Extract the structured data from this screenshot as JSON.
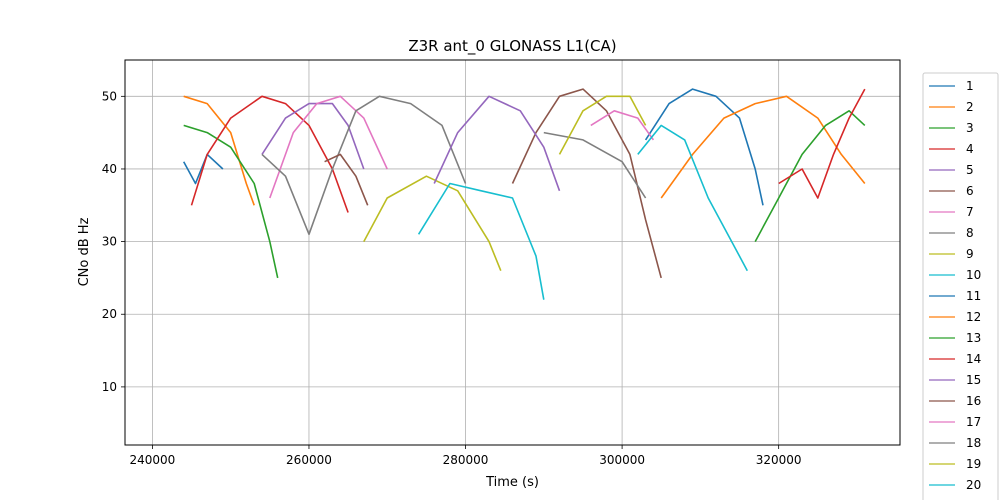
{
  "chart_data": {
    "type": "line",
    "title": "Z3R ant_0 GLONASS L1(CA)",
    "xlabel": "Time (s)",
    "ylabel": "CNo dB Hz",
    "xlim": [
      236500,
      335500
    ],
    "ylim": [
      2,
      55
    ],
    "xticks": [
      240000,
      260000,
      280000,
      300000,
      320000
    ],
    "xtick_labels": [
      "240000",
      "260000",
      "280000",
      "300000",
      "320000"
    ],
    "yticks": [
      10,
      20,
      30,
      40,
      50
    ],
    "ytick_labels": [
      "10",
      "20",
      "30",
      "40",
      "50"
    ],
    "grid": true,
    "legend_position": "right",
    "series": [
      {
        "name": "1",
        "color": "#1f77b4",
        "values": [
          [
            244000,
            41
          ],
          [
            245500,
            38
          ],
          [
            247000,
            42
          ],
          [
            249000,
            40
          ]
        ]
      },
      {
        "name": "2",
        "color": "#ff7f0e",
        "values": [
          [
            244000,
            50
          ],
          [
            247000,
            49
          ],
          [
            250000,
            45
          ],
          [
            252000,
            38
          ],
          [
            253000,
            35
          ]
        ]
      },
      {
        "name": "3",
        "color": "#2ca02c",
        "values": [
          [
            244000,
            46
          ],
          [
            247000,
            45
          ],
          [
            250000,
            43
          ],
          [
            253000,
            38
          ],
          [
            255000,
            30
          ],
          [
            256000,
            25
          ]
        ]
      },
      {
        "name": "4",
        "color": "#d62728",
        "values": [
          [
            245000,
            35
          ],
          [
            247000,
            42
          ],
          [
            250000,
            47
          ],
          [
            254000,
            50
          ],
          [
            257000,
            49
          ],
          [
            260000,
            46
          ],
          [
            263000,
            40
          ],
          [
            265000,
            34
          ]
        ]
      },
      {
        "name": "5",
        "color": "#9467bd",
        "values": [
          [
            254000,
            42
          ],
          [
            257000,
            47
          ],
          [
            260000,
            49
          ],
          [
            263000,
            49
          ],
          [
            265000,
            46
          ],
          [
            267000,
            40
          ]
        ]
      },
      {
        "name": "6",
        "color": "#8c564b",
        "values": [
          [
            286000,
            38
          ],
          [
            289000,
            45
          ],
          [
            292000,
            50
          ],
          [
            295000,
            51
          ],
          [
            298000,
            48
          ],
          [
            301000,
            42
          ],
          [
            303000,
            33
          ],
          [
            305000,
            25
          ]
        ]
      },
      {
        "name": "7",
        "color": "#e377c2",
        "values": [
          [
            255000,
            36
          ],
          [
            258000,
            45
          ],
          [
            261000,
            49
          ],
          [
            264000,
            50
          ],
          [
            267000,
            47
          ],
          [
            270000,
            40
          ]
        ]
      },
      {
        "name": "8",
        "color": "#7f7f7f",
        "values": [
          [
            254000,
            42
          ],
          [
            257000,
            39
          ],
          [
            260000,
            31
          ],
          [
            263000,
            40
          ],
          [
            266000,
            48
          ],
          [
            269000,
            50
          ],
          [
            273000,
            49
          ],
          [
            277000,
            46
          ],
          [
            280000,
            38
          ]
        ]
      },
      {
        "name": "9",
        "color": "#bcbd22",
        "values": [
          [
            267000,
            30
          ],
          [
            270000,
            36
          ],
          [
            275000,
            39
          ],
          [
            279000,
            37
          ],
          [
            283000,
            30
          ],
          [
            284500,
            26
          ]
        ]
      },
      {
        "name": "10",
        "color": "#17becf",
        "values": [
          [
            274000,
            31
          ],
          [
            278000,
            38
          ],
          [
            282000,
            37
          ],
          [
            286000,
            36
          ],
          [
            289000,
            28
          ],
          [
            290000,
            22
          ]
        ]
      },
      {
        "name": "11",
        "color": "#1f77b4",
        "values": [
          [
            303000,
            44
          ],
          [
            306000,
            49
          ],
          [
            309000,
            51
          ],
          [
            312000,
            50
          ],
          [
            315000,
            47
          ],
          [
            317000,
            40
          ],
          [
            318000,
            35
          ]
        ]
      },
      {
        "name": "12",
        "color": "#ff7f0e",
        "values": [
          [
            305000,
            36
          ],
          [
            309000,
            42
          ],
          [
            313000,
            47
          ],
          [
            317000,
            49
          ],
          [
            321000,
            50
          ],
          [
            325000,
            47
          ],
          [
            328000,
            42
          ],
          [
            331000,
            38
          ]
        ]
      },
      {
        "name": "13",
        "color": "#2ca02c",
        "values": [
          [
            317000,
            30
          ],
          [
            320000,
            36
          ],
          [
            323000,
            42
          ],
          [
            326000,
            46
          ],
          [
            329000,
            48
          ],
          [
            331000,
            46
          ]
        ]
      },
      {
        "name": "14",
        "color": "#d62728",
        "values": [
          [
            320000,
            38
          ],
          [
            323000,
            40
          ],
          [
            325000,
            36
          ],
          [
            327000,
            42
          ],
          [
            329000,
            47
          ],
          [
            331000,
            51
          ]
        ]
      },
      {
        "name": "15",
        "color": "#9467bd",
        "values": [
          [
            276000,
            38
          ],
          [
            279000,
            45
          ],
          [
            283000,
            50
          ],
          [
            287000,
            48
          ],
          [
            290000,
            43
          ],
          [
            292000,
            37
          ]
        ]
      },
      {
        "name": "16",
        "color": "#8c564b",
        "values": [
          [
            262000,
            41
          ],
          [
            264000,
            42
          ],
          [
            266000,
            39
          ],
          [
            267500,
            35
          ]
        ]
      },
      {
        "name": "17",
        "color": "#e377c2",
        "values": [
          [
            296000,
            46
          ],
          [
            299000,
            48
          ],
          [
            302000,
            47
          ],
          [
            304000,
            44
          ]
        ]
      },
      {
        "name": "18",
        "color": "#7f7f7f",
        "values": [
          [
            290000,
            45
          ],
          [
            295000,
            44
          ],
          [
            300000,
            41
          ],
          [
            303000,
            36
          ]
        ]
      },
      {
        "name": "19",
        "color": "#bcbd22",
        "values": [
          [
            292000,
            42
          ],
          [
            295000,
            48
          ],
          [
            298000,
            50
          ],
          [
            301000,
            50
          ],
          [
            303000,
            46
          ]
        ]
      },
      {
        "name": "20",
        "color": "#17becf",
        "values": [
          [
            302000,
            42
          ],
          [
            305000,
            46
          ],
          [
            308000,
            44
          ],
          [
            311000,
            36
          ],
          [
            314000,
            30
          ],
          [
            316000,
            26
          ]
        ]
      }
    ]
  }
}
